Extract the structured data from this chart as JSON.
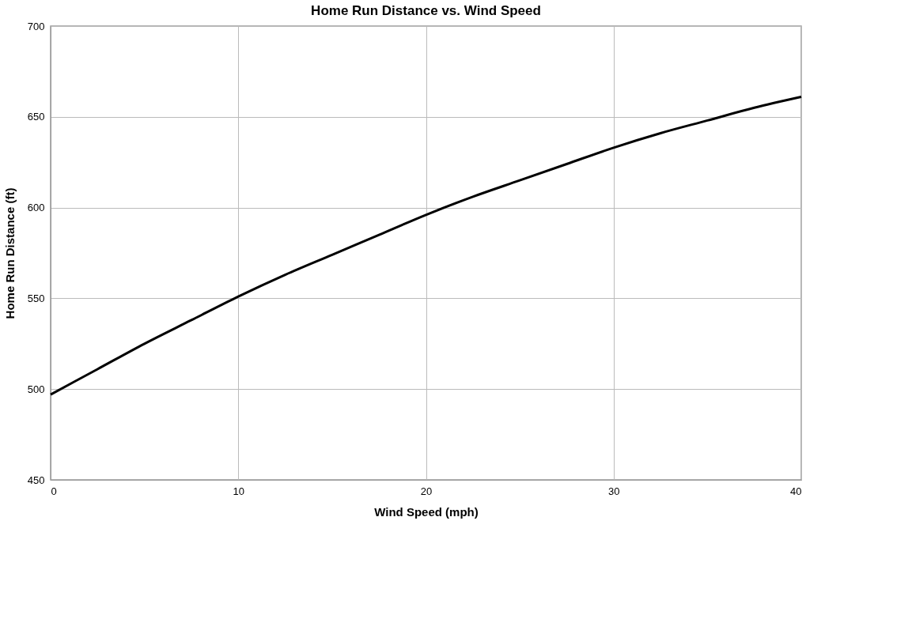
{
  "chart_data": {
    "type": "line",
    "title": "Home Run Distance vs. Wind Speed",
    "xlabel": "Wind Speed (mph)",
    "ylabel": "Home Run Distance (ft)",
    "x": [
      0,
      2.5,
      5,
      7.5,
      10,
      12.5,
      15,
      17.5,
      20,
      22.5,
      25,
      27.5,
      30,
      32.5,
      35,
      37.5,
      40
    ],
    "series": [
      {
        "color": "#000000",
        "values": [
          497,
          511,
          525,
          538,
          551,
          563,
          574,
          585,
          596,
          606,
          615,
          624,
          633,
          641,
          648,
          655,
          661
        ]
      }
    ],
    "xlim": [
      0,
      40
    ],
    "xticks": [
      0,
      10,
      20,
      30,
      40
    ],
    "ylim": [
      450,
      700
    ],
    "yticks": [
      450,
      500,
      550,
      600,
      650,
      700
    ],
    "grid": true,
    "legend": false,
    "marker": "none",
    "line_style": "solid"
  }
}
